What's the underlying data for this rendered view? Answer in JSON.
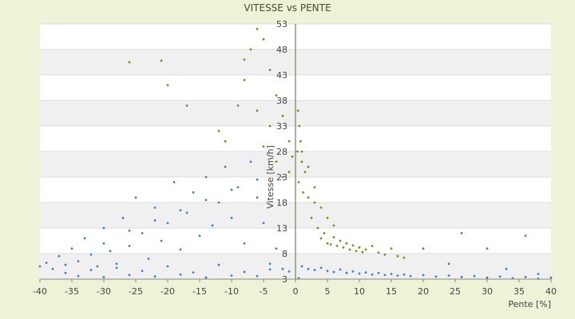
{
  "chart_data": {
    "type": "scatter",
    "title": "VITESSE vs PENTE",
    "xlabel": "Pente [%]",
    "ylabel": "Vitesse [km/h]",
    "xlim": [
      -40,
      40
    ],
    "ylim": [
      3,
      53
    ],
    "x_ticks": [
      "-40",
      "-35",
      "-30",
      "-25",
      "-20",
      "-15",
      "-10",
      "-5",
      "0",
      "5",
      "10",
      "15",
      "20",
      "25",
      "30",
      "35",
      "40"
    ],
    "y_ticks": [
      "3",
      "8",
      "13",
      "18",
      "23",
      "28",
      "33",
      "38",
      "43",
      "48",
      "53"
    ],
    "grid": true,
    "band_colors": [
      "#ffffff",
      "#f0f0f0"
    ],
    "series": [
      {
        "color": "#3d7fcb",
        "points": [
          [
            -40,
            5.5
          ],
          [
            -39,
            6.2
          ],
          [
            -38,
            5
          ],
          [
            -37,
            7.5
          ],
          [
            -36,
            5.8
          ],
          [
            -35,
            9
          ],
          [
            -34,
            6.5
          ],
          [
            -33,
            11
          ],
          [
            -32,
            7.8
          ],
          [
            -31,
            5.5
          ],
          [
            -30,
            13
          ],
          [
            -29,
            8.5
          ],
          [
            -28,
            6
          ],
          [
            -27,
            15
          ],
          [
            -26,
            9.5
          ],
          [
            -25,
            19
          ],
          [
            -24,
            12
          ],
          [
            -23,
            7
          ],
          [
            -22,
            17
          ],
          [
            -21,
            10.5
          ],
          [
            -20,
            14
          ],
          [
            -19,
            22
          ],
          [
            -18,
            8.8
          ],
          [
            -17,
            16
          ],
          [
            -16,
            20
          ],
          [
            -15,
            11.5
          ],
          [
            -14,
            23
          ],
          [
            -13,
            13.5
          ],
          [
            -12,
            18
          ],
          [
            -11,
            25
          ],
          [
            -10,
            15
          ],
          [
            -9,
            21
          ],
          [
            -8,
            10
          ],
          [
            -7,
            26
          ],
          [
            -6,
            19
          ],
          [
            -5,
            14
          ],
          [
            -4,
            6
          ],
          [
            -3,
            9
          ],
          [
            -2,
            5
          ],
          [
            -1,
            4.5
          ],
          [
            -36,
            4.2
          ],
          [
            -32,
            4.8
          ],
          [
            -28,
            5.2
          ],
          [
            -24,
            4.6
          ],
          [
            -20,
            5.5
          ],
          [
            -16,
            4.3
          ],
          [
            -12,
            5.8
          ],
          [
            -8,
            4.4
          ],
          [
            -4,
            4.9
          ],
          [
            -30,
            10
          ],
          [
            -26,
            12.5
          ],
          [
            -22,
            14.5
          ],
          [
            -18,
            16.5
          ],
          [
            -14,
            18.5
          ],
          [
            -10,
            20.5
          ],
          [
            -6,
            22.5
          ],
          [
            -34,
            3.6
          ],
          [
            -30,
            3.4
          ],
          [
            -26,
            3.8
          ],
          [
            -22,
            3.5
          ],
          [
            -18,
            3.9
          ],
          [
            -14,
            3.3
          ],
          [
            -10,
            3.7
          ],
          [
            -6,
            3.6
          ],
          [
            0.5,
            3.2
          ],
          [
            1,
            5.5
          ],
          [
            2,
            5
          ],
          [
            3,
            4.8
          ],
          [
            4,
            5.2
          ],
          [
            5,
            4.6
          ],
          [
            6,
            4.4
          ],
          [
            7,
            4.9
          ],
          [
            8,
            4.2
          ],
          [
            9,
            4.5
          ],
          [
            10,
            4.1
          ],
          [
            11,
            4.3
          ],
          [
            12,
            3.9
          ],
          [
            13,
            4.2
          ],
          [
            14,
            3.8
          ],
          [
            15,
            4
          ],
          [
            16,
            3.7
          ],
          [
            17,
            3.9
          ],
          [
            18,
            3.6
          ],
          [
            20,
            3.8
          ],
          [
            22,
            3.5
          ],
          [
            24,
            3.7
          ],
          [
            26,
            3.4
          ],
          [
            28,
            3.6
          ],
          [
            30,
            3.3
          ],
          [
            32,
            3.5
          ],
          [
            34,
            3.2
          ],
          [
            36,
            3.4
          ],
          [
            38,
            3.1
          ],
          [
            40,
            3.3
          ],
          [
            20,
            9
          ],
          [
            26,
            12
          ],
          [
            30,
            9
          ],
          [
            36,
            11.5
          ],
          [
            38,
            4
          ],
          [
            24,
            6
          ],
          [
            33,
            5
          ]
        ]
      },
      {
        "color": "#7f8a1a",
        "points": [
          [
            -26,
            45.5
          ],
          [
            -21,
            45.8
          ],
          [
            -20,
            41
          ],
          [
            -17,
            37
          ],
          [
            -12,
            32
          ],
          [
            -11,
            30
          ],
          [
            -9,
            37
          ],
          [
            -8,
            46
          ],
          [
            -7,
            48
          ],
          [
            -6,
            52
          ],
          [
            -5,
            50
          ],
          [
            -4,
            44
          ],
          [
            -3,
            39
          ],
          [
            -2,
            35
          ],
          [
            -1,
            30
          ],
          [
            -0.5,
            27
          ],
          [
            -8,
            42
          ],
          [
            -6,
            36
          ],
          [
            -5,
            29
          ],
          [
            -4,
            33
          ],
          [
            -3,
            26
          ],
          [
            -2,
            23
          ],
          [
            -1,
            24
          ],
          [
            0.3,
            28
          ],
          [
            0.5,
            22
          ],
          [
            1,
            26
          ],
          [
            1.5,
            24
          ],
          [
            2,
            19
          ],
          [
            2.5,
            15
          ],
          [
            3,
            18
          ],
          [
            3.5,
            13
          ],
          [
            4,
            11
          ],
          [
            4.5,
            12
          ],
          [
            5,
            10
          ],
          [
            5.5,
            9.8
          ],
          [
            6,
            11.2
          ],
          [
            6.5,
            9.5
          ],
          [
            7,
            10.5
          ],
          [
            7.5,
            9.2
          ],
          [
            8,
            10
          ],
          [
            8.5,
            8.8
          ],
          [
            9,
            9.6
          ],
          [
            9.5,
            8.5
          ],
          [
            10,
            9.2
          ],
          [
            10.5,
            8.3
          ],
          [
            11,
            8.8
          ],
          [
            12,
            9.5
          ],
          [
            13,
            8.2
          ],
          [
            14,
            7.8
          ],
          [
            15,
            9
          ],
          [
            16,
            7.5
          ],
          [
            17,
            7.2
          ],
          [
            5,
            15
          ],
          [
            6,
            13.5
          ],
          [
            4,
            17
          ],
          [
            3,
            21
          ],
          [
            2,
            25
          ],
          [
            1,
            28
          ],
          [
            0.8,
            30
          ],
          [
            1.2,
            20
          ],
          [
            0.6,
            33
          ],
          [
            0.4,
            36
          ]
        ]
      }
    ]
  }
}
